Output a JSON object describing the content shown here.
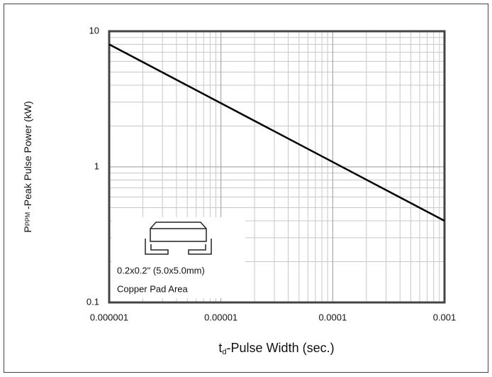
{
  "chart_data": {
    "type": "line",
    "y_label": {
      "main": "P",
      "sub": "PPM",
      "rest": " -Peak Pulse Power (kW)"
    },
    "x_label": {
      "main": "t",
      "sub": "d",
      "rest": "-Pulse Width (sec.)"
    },
    "x": [
      1e-06,
      0.001
    ],
    "series": [
      {
        "color": "#000000",
        "values": [
          8,
          0.4
        ]
      }
    ],
    "xlim": [
      1e-06,
      0.001
    ],
    "xticks": [
      1e-06,
      1e-05,
      0.0001,
      0.001
    ],
    "ylim": [
      0.1,
      10
    ],
    "yticks": [
      0.1,
      1,
      10
    ],
    "log_x": true,
    "log_y": true,
    "grid": true,
    "inset": {
      "line1": "0.2x0.2\" (5.0x5.0mm)",
      "line2": "Copper Pad Area"
    }
  }
}
